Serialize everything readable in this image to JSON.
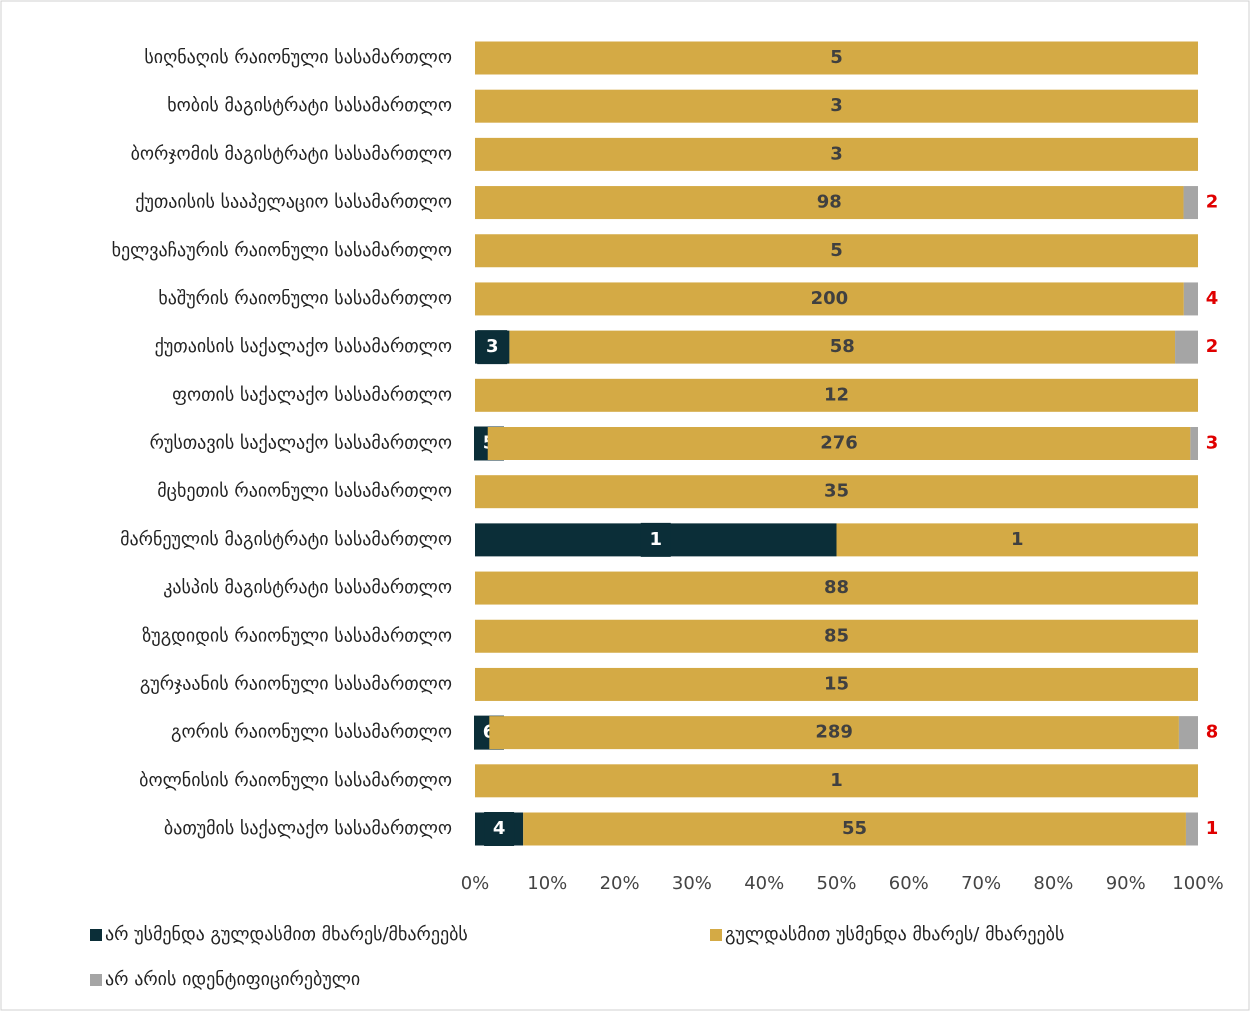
{
  "chart_data": {
    "type": "bar",
    "orientation": "horizontal",
    "stacking": "percent",
    "categories": [
      "სიღნაღის რაიონული სასამართლო",
      "ხობის მაგისტრატი სასამართლო",
      "ბორჯომის მაგისტრატი სასამართლო",
      "ქუთაისის სააპელაციო სასამართლო",
      "ხელვაჩაურის რაიონული სასამართლო",
      "ხაშურის რაიონული სასამართლო",
      "ქუთაისის საქალაქო სასამართლო",
      "ფოთის საქალაქო სასამართლო",
      "რუსთავის საქალაქო სასამართლო",
      "მცხეთის რაიონული სასამართლო",
      "მარნეულის მაგისტრატი სასამართლო",
      "კასპის მაგისტრატი სასამართლო",
      "ზუგდიდის რაიონული სასამართლო",
      "გურჯაანის რაიონული სასამართლო",
      "გორის რაიონული სასამართლო",
      "ბოლნისის რაიონული სასამართლო",
      "ბათუმის საქალაქო სასამართლო"
    ],
    "series": [
      {
        "name": "არ უსმენდა გულდასმით მხარეს/მხარეებს",
        "color": "#0b2e38",
        "label_color": "#ffffff",
        "values": [
          null,
          null,
          null,
          null,
          null,
          null,
          3,
          null,
          5,
          null,
          1,
          null,
          null,
          null,
          6,
          null,
          4
        ]
      },
      {
        "name": "გულდასმით უსმენდა მხარეს/ მხარეებს",
        "color": "#d4aa45",
        "label_color": "#404040",
        "values": [
          5,
          3,
          3,
          98,
          5,
          200,
          58,
          12,
          276,
          35,
          1,
          88,
          85,
          15,
          289,
          1,
          55
        ]
      },
      {
        "name": "არ არის იდენტიფიცირებული",
        "color": "#a5a5a5",
        "label_color": "#e00000",
        "values": [
          null,
          null,
          null,
          2,
          null,
          4,
          2,
          null,
          3,
          null,
          null,
          null,
          null,
          null,
          8,
          null,
          1
        ]
      }
    ],
    "xlim": [
      0,
      100
    ],
    "xticks": [
      {
        "value": 0,
        "label": "0%"
      },
      {
        "value": 10,
        "label": "10%"
      },
      {
        "value": 20,
        "label": "20%"
      },
      {
        "value": 30,
        "label": "30%"
      },
      {
        "value": 40,
        "label": "40%"
      },
      {
        "value": 50,
        "label": "50%"
      },
      {
        "value": 60,
        "label": "60%"
      },
      {
        "value": 70,
        "label": "70%"
      },
      {
        "value": 80,
        "label": "80%"
      },
      {
        "value": 90,
        "label": "90%"
      },
      {
        "value": 100,
        "label": "100%"
      }
    ],
    "grid": false,
    "legend": "bottom"
  }
}
